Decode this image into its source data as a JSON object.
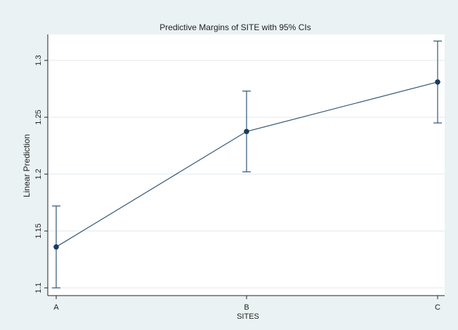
{
  "chart_data": {
    "type": "line",
    "title": "Predictive Margins of SITE with 95% CIs",
    "xlabel": "SITES",
    "ylabel": "Linear Prediction",
    "categories": [
      "A",
      "B",
      "C"
    ],
    "series": [
      {
        "values": [
          1.136,
          1.2375,
          1.281
        ],
        "ci_lower": [
          1.1,
          1.202,
          1.245
        ],
        "ci_upper": [
          1.172,
          1.273,
          1.317
        ]
      }
    ],
    "ylim": [
      1.1,
      1.3
    ],
    "yticks": [
      1.1,
      1.15,
      1.2,
      1.25,
      1.3
    ],
    "ytick_labels": [
      "1.1",
      "1.15",
      "1.2",
      "1.25",
      "1.3"
    ],
    "grid": true,
    "colors": {
      "line": "#2e5575",
      "marker": "#1a3b5c",
      "background": "#eaf2f3",
      "plot_background": "#ffffff",
      "grid": "#e8eef0"
    }
  }
}
